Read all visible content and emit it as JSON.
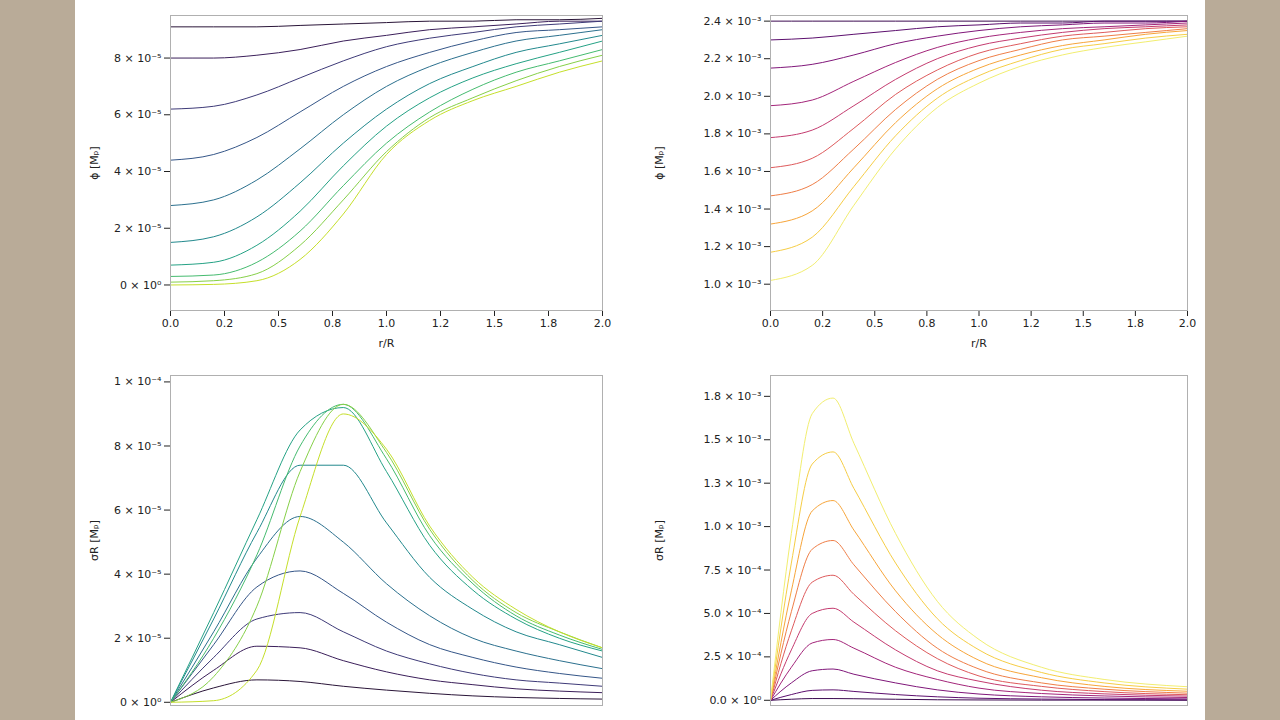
{
  "chart_data": [
    {
      "type": "line",
      "x_label": "r/R",
      "y_label": "ϕ [Mₚ]",
      "x": [
        0,
        0.2,
        0.4,
        0.6,
        0.8,
        1.0,
        1.2,
        1.4,
        1.6,
        1.8,
        2.0
      ],
      "xlim": [
        0,
        2.0
      ],
      "xticks": [
        {
          "value": 0,
          "label": "0.0"
        },
        {
          "value": 0.25,
          "label": "0.2"
        },
        {
          "value": 0.5,
          "label": "0.5"
        },
        {
          "value": 0.75,
          "label": "0.8"
        },
        {
          "value": 1.0,
          "label": "1.0"
        },
        {
          "value": 1.25,
          "label": "1.2"
        },
        {
          "value": 1.5,
          "label": "1.5"
        },
        {
          "value": 1.75,
          "label": "1.8"
        },
        {
          "value": 2.0,
          "label": "2.0"
        }
      ],
      "ylim": [
        -9e-06,
        9.5e-05
      ],
      "yticks": [
        {
          "value": 0,
          "label": "0 × 10⁰"
        },
        {
          "value": 2e-05,
          "label": "2 × 10⁻⁵"
        },
        {
          "value": 4e-05,
          "label": "4 × 10⁻⁵"
        },
        {
          "value": 6e-05,
          "label": "6 × 10⁻⁵"
        },
        {
          "value": 8e-05,
          "label": "8 × 10⁻⁵"
        }
      ],
      "series": [
        {
          "color": "#2a1538",
          "values": [
            9.1e-05,
            9.1e-05,
            9.1e-05,
            9.15e-05,
            9.2e-05,
            9.25e-05,
            9.3e-05,
            9.3e-05,
            9.35e-05,
            9.35e-05,
            9.4e-05
          ]
        },
        {
          "color": "#3b1f5a",
          "values": [
            8e-05,
            8e-05,
            8.1e-05,
            8.3e-05,
            8.6e-05,
            8.8e-05,
            9e-05,
            9.1e-05,
            9.2e-05,
            9.3e-05,
            9.3e-05
          ]
        },
        {
          "color": "#3e3a78",
          "values": [
            6.2e-05,
            6.3e-05,
            6.7e-05,
            7.3e-05,
            7.9e-05,
            8.4e-05,
            8.7e-05,
            8.9e-05,
            9.1e-05,
            9.2e-05,
            9.3e-05
          ]
        },
        {
          "color": "#355688",
          "values": [
            4.4e-05,
            4.6e-05,
            5.2e-05,
            6.1e-05,
            7e-05,
            7.7e-05,
            8.2e-05,
            8.6e-05,
            8.9e-05,
            9e-05,
            9.1e-05
          ]
        },
        {
          "color": "#2b708e",
          "values": [
            2.8e-05,
            3e-05,
            3.7e-05,
            4.8e-05,
            6e-05,
            7e-05,
            7.7e-05,
            8.2e-05,
            8.6e-05,
            8.8e-05,
            9e-05
          ]
        },
        {
          "color": "#22898d",
          "values": [
            1.5e-05,
            1.7e-05,
            2.4e-05,
            3.6e-05,
            5e-05,
            6.2e-05,
            7.1e-05,
            7.7e-05,
            8.2e-05,
            8.5e-05,
            8.8e-05
          ]
        },
        {
          "color": "#25a285",
          "values": [
            7e-06,
            8e-06,
            1.4e-05,
            2.6e-05,
            4.2e-05,
            5.6e-05,
            6.6e-05,
            7.3e-05,
            7.8e-05,
            8.2e-05,
            8.6e-05
          ]
        },
        {
          "color": "#45bb6f",
          "values": [
            3e-06,
            3.5e-06,
            8e-06,
            1.9e-05,
            3.5e-05,
            5e-05,
            6.1e-05,
            6.9e-05,
            7.5e-05,
            7.9e-05,
            8.3e-05
          ]
        },
        {
          "color": "#86d048",
          "values": [
            1e-06,
            1.5e-06,
            4e-06,
            1.4e-05,
            3e-05,
            4.7e-05,
            5.9e-05,
            6.6e-05,
            7.2e-05,
            7.7e-05,
            8.1e-05
          ]
        },
        {
          "color": "#c5df2a",
          "values": [
            0,
            2e-07,
            1.5e-06,
            9e-06,
            2.5e-05,
            4.6e-05,
            5.8e-05,
            6.5e-05,
            7e-05,
            7.5e-05,
            7.9e-05
          ]
        }
      ]
    },
    {
      "type": "line",
      "x_label": "r/R",
      "y_label": "ϕ [Mₚ]",
      "x": [
        0,
        0.2,
        0.4,
        0.6,
        0.8,
        1.0,
        1.2,
        1.4,
        1.6,
        1.8,
        2.0
      ],
      "xlim": [
        0,
        2.0
      ],
      "xticks": [
        {
          "value": 0,
          "label": "0.0"
        },
        {
          "value": 0.25,
          "label": "0.2"
        },
        {
          "value": 0.5,
          "label": "0.5"
        },
        {
          "value": 0.75,
          "label": "0.8"
        },
        {
          "value": 1.0,
          "label": "1.0"
        },
        {
          "value": 1.25,
          "label": "1.2"
        },
        {
          "value": 1.5,
          "label": "1.5"
        },
        {
          "value": 1.75,
          "label": "1.8"
        },
        {
          "value": 2.0,
          "label": "2.0"
        }
      ],
      "ylim": [
        0.00086,
        0.00243
      ],
      "yticks": [
        {
          "value": 0.001,
          "label": "1.0 × 10⁻³"
        },
        {
          "value": 0.0012,
          "label": "1.2 × 10⁻³"
        },
        {
          "value": 0.0014,
          "label": "1.4 × 10⁻³"
        },
        {
          "value": 0.0016,
          "label": "1.6 × 10⁻³"
        },
        {
          "value": 0.0018,
          "label": "1.8 × 10⁻³"
        },
        {
          "value": 0.002,
          "label": "2.0 × 10⁻³"
        },
        {
          "value": 0.0022,
          "label": "2.2 × 10⁻³"
        },
        {
          "value": 0.0024,
          "label": "2.4 × 10⁻³"
        }
      ],
      "series": [
        {
          "color": "#3b0a50",
          "values": [
            0.0024,
            0.0024,
            0.0024,
            0.0024,
            0.0024,
            0.0024,
            0.0024,
            0.0024,
            0.0024,
            0.0024,
            0.0024
          ]
        },
        {
          "color": "#5c0f6e",
          "values": [
            0.0023,
            0.00231,
            0.00233,
            0.00235,
            0.00237,
            0.00238,
            0.00239,
            0.00239,
            0.0024,
            0.0024,
            0.0024
          ]
        },
        {
          "color": "#80177a",
          "values": [
            0.00215,
            0.00217,
            0.00222,
            0.00228,
            0.00232,
            0.00235,
            0.00237,
            0.00238,
            0.00239,
            0.00239,
            0.0024
          ]
        },
        {
          "color": "#a3257a",
          "values": [
            0.00195,
            0.00198,
            0.00208,
            0.00218,
            0.00226,
            0.00231,
            0.00234,
            0.00236,
            0.00237,
            0.00238,
            0.00239
          ]
        },
        {
          "color": "#c43b6f",
          "values": [
            0.00178,
            0.00182,
            0.00195,
            0.00209,
            0.0022,
            0.00227,
            0.00231,
            0.00234,
            0.00236,
            0.00237,
            0.00238
          ]
        },
        {
          "color": "#de5a5c",
          "values": [
            0.00162,
            0.00167,
            0.00183,
            0.00201,
            0.00214,
            0.00223,
            0.00228,
            0.00232,
            0.00234,
            0.00236,
            0.00237
          ]
        },
        {
          "color": "#ef7e47",
          "values": [
            0.00147,
            0.00153,
            0.00172,
            0.00193,
            0.00209,
            0.00219,
            0.00225,
            0.0023,
            0.00232,
            0.00234,
            0.00236
          ]
        },
        {
          "color": "#f7a53a",
          "values": [
            0.00132,
            0.00139,
            0.00162,
            0.00186,
            0.00204,
            0.00215,
            0.00222,
            0.00227,
            0.0023,
            0.00233,
            0.00235
          ]
        },
        {
          "color": "#f6cd45",
          "values": [
            0.00117,
            0.00125,
            0.00152,
            0.00179,
            0.00199,
            0.00211,
            0.00219,
            0.00225,
            0.00228,
            0.00231,
            0.00233
          ]
        },
        {
          "color": "#f2ee70",
          "values": [
            0.00102,
            0.0011,
            0.00142,
            0.00172,
            0.00194,
            0.00207,
            0.00216,
            0.00222,
            0.00226,
            0.00229,
            0.00232
          ]
        }
      ]
    },
    {
      "type": "line",
      "y_label": "σR [Mₚ]",
      "tick_labels": "y",
      "x": [
        0,
        0.2,
        0.4,
        0.6,
        0.8,
        1.0,
        1.2,
        1.4,
        1.6,
        1.8,
        2.0
      ],
      "xlim": [
        0,
        2.0
      ],
      "ylim": [
        -1e-06,
        0.000102
      ],
      "yticks": [
        {
          "value": 0,
          "label": "0 × 10⁰"
        },
        {
          "value": 2e-05,
          "label": "2 × 10⁻⁵"
        },
        {
          "value": 4e-05,
          "label": "4 × 10⁻⁵"
        },
        {
          "value": 6e-05,
          "label": "6 × 10⁻⁵"
        },
        {
          "value": 8e-05,
          "label": "8 × 10⁻⁵"
        },
        {
          "value": 0.0001,
          "label": "1 × 10⁻⁴"
        }
      ],
      "series": [
        {
          "color": "#2a1538",
          "values": [
            0,
            4.5e-06,
            7e-06,
            6.5e-06,
            5e-06,
            3.8e-06,
            2.8e-06,
            2e-06,
            1.5e-06,
            1.2e-06,
            1e-06
          ]
        },
        {
          "color": "#3b1f5a",
          "values": [
            0,
            1e-05,
            1.75e-05,
            1.7e-05,
            1.3e-05,
            9.5e-06,
            7e-06,
            5.5e-06,
            4.2e-06,
            3.5e-06,
            3e-06
          ]
        },
        {
          "color": "#3e3a78",
          "values": [
            0,
            1.4e-05,
            2.6e-05,
            2.8e-05,
            2.2e-05,
            1.6e-05,
            1.2e-05,
            9e-06,
            7e-06,
            6e-06,
            5e-06
          ]
        },
        {
          "color": "#355688",
          "values": [
            0,
            1.8e-05,
            3.6e-05,
            4.1e-05,
            3.4e-05,
            2.5e-05,
            1.8e-05,
            1.4e-05,
            1.1e-05,
            9e-06,
            7.5e-06
          ]
        },
        {
          "color": "#2b708e",
          "values": [
            0,
            2.2e-05,
            4.5e-05,
            5.8e-05,
            5e-05,
            3.7e-05,
            2.7e-05,
            2e-05,
            1.6e-05,
            1.3e-05,
            1.05e-05
          ]
        },
        {
          "color": "#22898d",
          "values": [
            0,
            2.6e-05,
            5.3e-05,
            7.4e-05,
            7.4e-05,
            5.6e-05,
            3.9e-05,
            2.9e-05,
            2.2e-05,
            1.8e-05,
            1.4e-05
          ]
        },
        {
          "color": "#25a285",
          "values": [
            0,
            2.8e-05,
            5.7e-05,
            8.5e-05,
            9.2e-05,
            7.2e-05,
            4.9e-05,
            3.5e-05,
            2.6e-05,
            2e-05,
            1.6e-05
          ]
        },
        {
          "color": "#45bb6f",
          "values": [
            0,
            2e-05,
            4.6e-05,
            8e-05,
            9.3e-05,
            7.6e-05,
            5.2e-05,
            3.7e-05,
            2.7e-05,
            2.1e-05,
            1.65e-05
          ]
        },
        {
          "color": "#86d048",
          "values": [
            0,
            8e-06,
            3e-05,
            7.2e-05,
            9.3e-05,
            7.8e-05,
            5.4e-05,
            3.8e-05,
            2.8e-05,
            2.2e-05,
            1.7e-05
          ]
        },
        {
          "color": "#c5df2a",
          "values": [
            0,
            5e-07,
            1e-05,
            5.8e-05,
            9e-05,
            7.9e-05,
            5.5e-05,
            3.9e-05,
            2.9e-05,
            2.2e-05,
            1.7e-05
          ]
        }
      ]
    },
    {
      "type": "line",
      "y_label": "σR [Mₚ]",
      "tick_labels": "y",
      "x": [
        0,
        0.1,
        0.2,
        0.3,
        0.4,
        0.6,
        0.8,
        1.0,
        1.3,
        1.6,
        2.0
      ],
      "xlim": [
        0,
        2.0
      ],
      "ylim": [
        -3e-05,
        0.00187
      ],
      "yticks": [
        {
          "value": 0,
          "label": "0.0 × 10⁰"
        },
        {
          "value": 0.00025,
          "label": "2.5 × 10⁻⁴"
        },
        {
          "value": 0.0005,
          "label": "5.0 × 10⁻⁴"
        },
        {
          "value": 0.00075,
          "label": "7.5 × 10⁻⁴"
        },
        {
          "value": 0.001,
          "label": "1.0 × 10⁻³"
        },
        {
          "value": 0.00125,
          "label": "1.3 × 10⁻³"
        },
        {
          "value": 0.0015,
          "label": "1.5 × 10⁻³"
        },
        {
          "value": 0.00175,
          "label": "1.8 × 10⁻³"
        }
      ],
      "series": [
        {
          "color": "#3b0a50",
          "values": [
            0,
            6e-06,
            1e-05,
            1e-05,
            9e-06,
            6e-06,
            3e-06,
            2e-06,
            1e-06,
            1e-06,
            0
          ]
        },
        {
          "color": "#5c0f6e",
          "values": [
            0,
            3.3e-05,
            5.7e-05,
            6e-05,
            5.1e-05,
            3.3e-05,
            2e-05,
            1.2e-05,
            7e-06,
            4e-06,
            3e-06
          ]
        },
        {
          "color": "#80177a",
          "values": [
            0,
            0.0001,
            0.00017,
            0.00018,
            0.00015,
            0.0001,
            6e-05,
            3.6e-05,
            2e-05,
            1.3e-05,
            8e-06
          ]
        },
        {
          "color": "#a3257a",
          "values": [
            0,
            0.00019,
            0.00033,
            0.00035,
            0.0003,
            0.00019,
            0.00012,
            7e-05,
            3.9e-05,
            2.5e-05,
            1.6e-05
          ]
        },
        {
          "color": "#c43b6f",
          "values": [
            0,
            0.00029,
            0.0005,
            0.00053,
            0.00045,
            0.00029,
            0.00017,
            0.00011,
            5.8e-05,
            3.7e-05,
            2.4e-05
          ]
        },
        {
          "color": "#de5a5c",
          "values": [
            0,
            0.0004,
            0.00068,
            0.00072,
            0.00061,
            0.0004,
            0.00024,
            0.00014,
            8e-05,
            5e-05,
            3.2e-05
          ]
        },
        {
          "color": "#ef7e47",
          "values": [
            0,
            0.00051,
            0.00087,
            0.00092,
            0.00078,
            0.00051,
            0.0003,
            0.00018,
            0.0001,
            6.4e-05,
            4.1e-05
          ]
        },
        {
          "color": "#f7a53a",
          "values": [
            0,
            0.00063,
            0.00109,
            0.00115,
            0.00098,
            0.00063,
            0.00038,
            0.00023,
            0.00013,
            8e-05,
            5.2e-05
          ]
        },
        {
          "color": "#f6cd45",
          "values": [
            0,
            0.00079,
            0.00136,
            0.00143,
            0.00122,
            0.00079,
            0.00047,
            0.00029,
            0.00016,
            0.0001,
            6.4e-05
          ]
        },
        {
          "color": "#f2ee70",
          "values": [
            0,
            0.00096,
            0.00165,
            0.00174,
            0.00148,
            0.00096,
            0.00057,
            0.00035,
            0.00019,
            0.00012,
            7.8e-05
          ]
        }
      ]
    }
  ]
}
